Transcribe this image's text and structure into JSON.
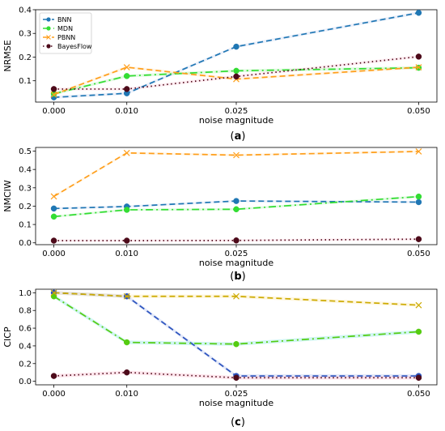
{
  "figure": {
    "captions": [
      "(a)",
      "(b)",
      "(c)"
    ]
  },
  "chart_data": [
    {
      "type": "line",
      "panel": "(a)",
      "categories": [
        "0.000",
        "0.010",
        "0.025",
        "0.050"
      ],
      "x": [
        0.0,
        0.01,
        0.025,
        0.05
      ],
      "xlabel": "noise magnitude",
      "ylabel": "NRMSE",
      "ylim": [
        0.01,
        0.4
      ],
      "yticks": [
        0.1,
        0.2,
        0.3,
        0.4
      ],
      "ytick_labels": [
        "0.1",
        "0.2",
        "0.3",
        "0.4"
      ],
      "grid": false,
      "legend_placement": "top-left",
      "series": [
        {
          "name": "BNN",
          "values": [
            0.03,
            0.047,
            0.244,
            0.387
          ],
          "color": "#1f77b4",
          "style": "dashed",
          "marker": "circle"
        },
        {
          "name": "MDN",
          "values": [
            0.045,
            0.12,
            0.142,
            0.155
          ],
          "color": "#33dd33",
          "style": "dashdot",
          "marker": "circle"
        },
        {
          "name": "PBNN",
          "values": [
            0.042,
            0.157,
            0.107,
            0.157
          ],
          "color": "#ff9f1c",
          "style": "dashed",
          "marker": "x"
        },
        {
          "name": "BayesFlow",
          "values": [
            0.065,
            0.065,
            0.118,
            0.202
          ],
          "color": "#4d0a1a",
          "style": "dotted",
          "marker": "circle"
        }
      ]
    },
    {
      "type": "line",
      "panel": "(b)",
      "categories": [
        "0.000",
        "0.010",
        "0.025",
        "0.050"
      ],
      "x": [
        0.0,
        0.01,
        0.025,
        0.05
      ],
      "xlabel": "noise magnitude",
      "ylabel": "NMCIW",
      "ylim": [
        -0.01,
        0.52
      ],
      "yticks": [
        0.0,
        0.1,
        0.2,
        0.3,
        0.4,
        0.5
      ],
      "ytick_labels": [
        "0.0",
        "0.1",
        "0.2",
        "0.3",
        "0.4",
        "0.5"
      ],
      "grid": false,
      "series": [
        {
          "name": "BNN",
          "values": [
            0.187,
            0.198,
            0.228,
            0.222
          ],
          "color": "#1f77b4",
          "style": "dashed",
          "marker": "circle"
        },
        {
          "name": "MDN",
          "values": [
            0.143,
            0.18,
            0.183,
            0.252
          ],
          "color": "#33dd33",
          "style": "dashdot",
          "marker": "circle"
        },
        {
          "name": "PBNN",
          "values": [
            0.253,
            0.49,
            0.478,
            0.498
          ],
          "color": "#ff9f1c",
          "style": "dashed",
          "marker": "x"
        },
        {
          "name": "BayesFlow",
          "values": [
            0.012,
            0.012,
            0.013,
            0.02
          ],
          "color": "#4d0a1a",
          "style": "dotted",
          "marker": "circle"
        }
      ]
    },
    {
      "type": "line",
      "panel": "(c)",
      "categories": [
        "0.000",
        "0.010",
        "0.025",
        "0.050"
      ],
      "x": [
        0.0,
        0.01,
        0.025,
        0.05
      ],
      "xlabel": "noise magnitude",
      "ylabel": "CICP",
      "ylim": [
        -0.04,
        1.04
      ],
      "yticks": [
        0.0,
        0.2,
        0.4,
        0.6,
        0.8,
        1.0
      ],
      "ytick_labels": [
        "0.0",
        "0.2",
        "0.4",
        "0.6",
        "0.8",
        "1.0"
      ],
      "grid": false,
      "series": [
        {
          "name": "BNN",
          "values": [
            1.0,
            0.96,
            0.06,
            0.06
          ],
          "color": "#2a52be",
          "style": "dashed",
          "marker": "circle"
        },
        {
          "name": "MDN",
          "values": [
            0.96,
            0.44,
            0.42,
            0.56
          ],
          "color": "#55cc11",
          "style": "dashdot",
          "marker": "circle"
        },
        {
          "name": "PBNN",
          "values": [
            1.0,
            0.96,
            0.96,
            0.86
          ],
          "color": "#ccaa00",
          "style": "dashed",
          "marker": "x"
        },
        {
          "name": "BayesFlow",
          "values": [
            0.06,
            0.1,
            0.04,
            0.04
          ],
          "color": "#4d0a1a",
          "style": "dotted",
          "marker": "circle"
        }
      ]
    }
  ]
}
